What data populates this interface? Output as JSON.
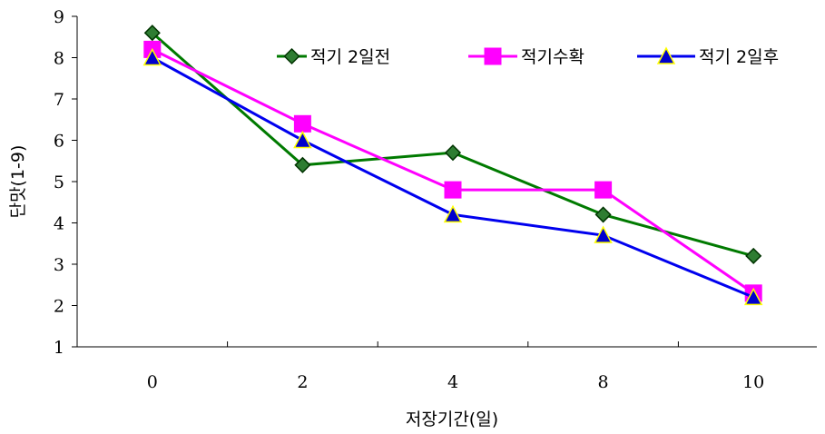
{
  "chart_data": {
    "type": "line",
    "categories": [
      "0",
      "2",
      "4",
      "8",
      "10"
    ],
    "series": [
      {
        "name": "적기 2일전",
        "values": [
          8.6,
          5.4,
          5.7,
          4.2,
          3.2
        ],
        "color": "#007a00",
        "marker": "diamond",
        "marker_fill": "#2e7d32",
        "marker_stroke": "#003300"
      },
      {
        "name": "적기수확",
        "values": [
          8.2,
          6.4,
          4.8,
          4.8,
          2.3
        ],
        "color": "#ff00ff",
        "marker": "square",
        "marker_fill": "#ff00ff",
        "marker_stroke": "#ff00ff"
      },
      {
        "name": "적기 2일후",
        "values": [
          8.0,
          6.0,
          4.2,
          3.7,
          2.2
        ],
        "color": "#0000ee",
        "marker": "triangle",
        "marker_fill": "#0000cc",
        "marker_stroke": "#ffff00"
      }
    ],
    "xlabel": "저장기간(일)",
    "ylabel": "단맛(1-9)",
    "ylim": [
      1,
      9
    ],
    "yticks": [
      "1",
      "2",
      "3",
      "4",
      "5",
      "6",
      "7",
      "8",
      "9"
    ],
    "grid": false,
    "legend_position": "top-right"
  }
}
